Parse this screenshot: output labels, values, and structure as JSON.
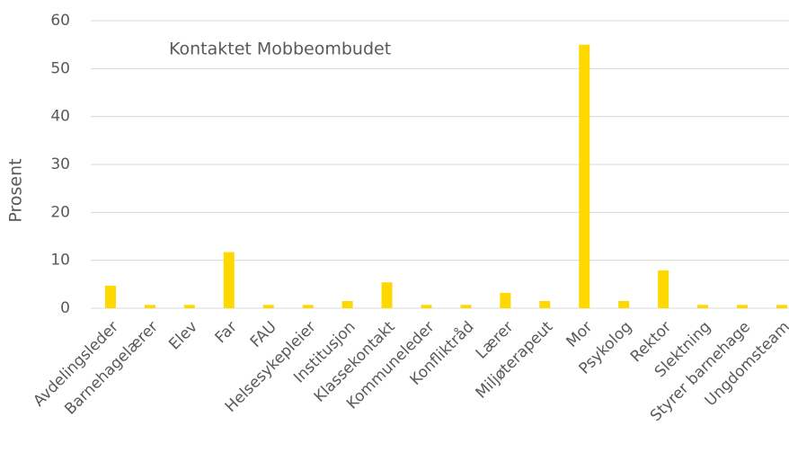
{
  "chart_data": {
    "type": "bar",
    "title": "Kontaktet Mobbeombudet",
    "ylabel": "Prosent",
    "categories": [
      "Avdelingsleder",
      "Barnehagelærer",
      "Elev",
      "Far",
      "FAU",
      "Helsesykepleier",
      "Institusjon",
      "Klassekontakt",
      "Kommuneleder",
      "Konfliktråd",
      "Lærer",
      "Miljøterapeut",
      "Mor",
      "Psykolog",
      "Rektor",
      "Slektning",
      "Styrer barnehage",
      "Ungdomsteam"
    ],
    "values": [
      4.7,
      0.7,
      0.7,
      11.7,
      0.7,
      0.7,
      1.5,
      5.4,
      0.7,
      0.7,
      3.2,
      1.5,
      55,
      1.5,
      7.9,
      0.7,
      0.7,
      0.7
    ],
    "color": "#ffd800",
    "ylim": [
      0,
      60
    ],
    "yticks": [
      0,
      10,
      20,
      30,
      40,
      50,
      60
    ],
    "grid": true
  }
}
